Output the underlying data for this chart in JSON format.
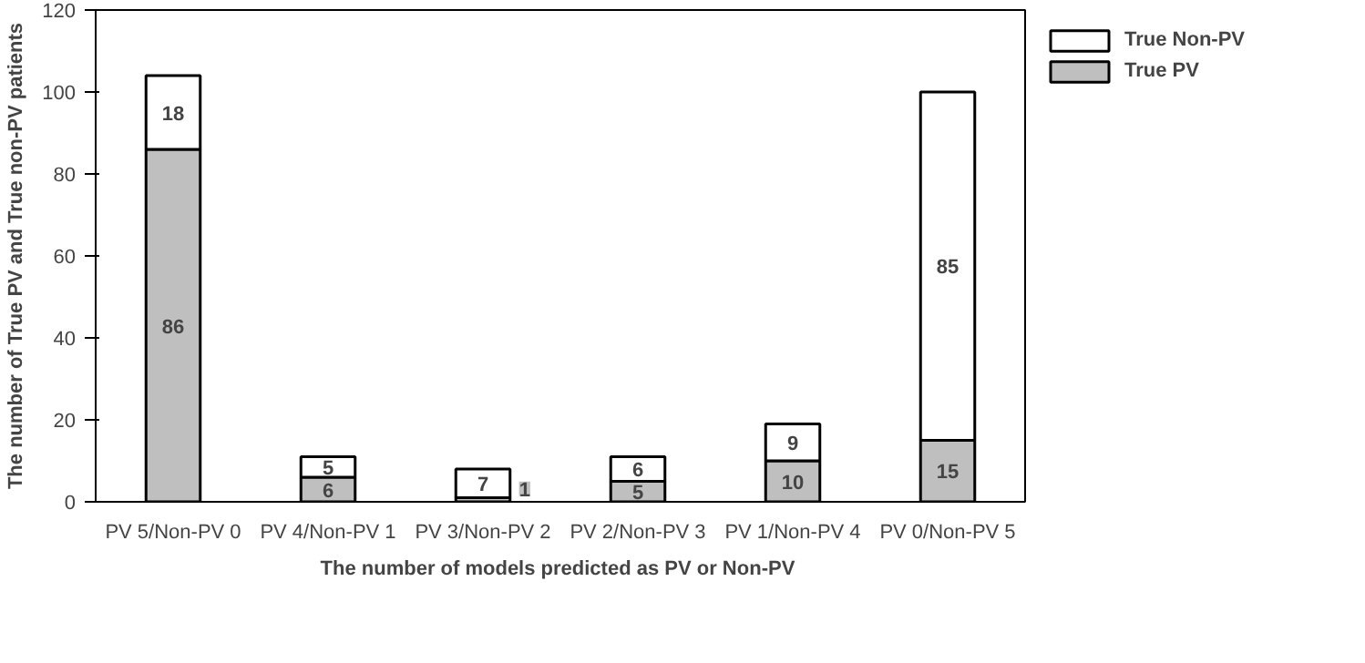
{
  "chart_data": {
    "type": "bar",
    "stacked": true,
    "xlabel": "The number of models  predicted as PV or Non-PV",
    "ylabel": "The number of True PV and True non-PV patients",
    "categories": [
      "PV 5/Non-PV 0",
      "PV 4/Non-PV 1",
      "PV 3/Non-PV 2",
      "PV 2/Non-PV 3",
      "PV 1/Non-PV 4",
      "PV 0/Non-PV 5"
    ],
    "series": [
      {
        "name": "True PV",
        "color": "#bfbfbf",
        "values": [
          86,
          6,
          1,
          5,
          10,
          15
        ]
      },
      {
        "name": "True Non-PV",
        "color": "#ffffff",
        "values": [
          18,
          5,
          7,
          6,
          9,
          85
        ]
      }
    ],
    "ylim": [
      0,
      120
    ],
    "yticks": [
      0,
      20,
      40,
      60,
      80,
      100,
      120
    ],
    "grid": false,
    "legend": "top right",
    "data_labels": true
  }
}
